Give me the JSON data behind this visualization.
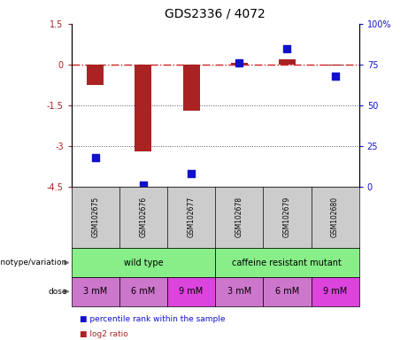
{
  "title": "GDS2336 / 4072",
  "samples": [
    "GSM102675",
    "GSM102676",
    "GSM102677",
    "GSM102678",
    "GSM102679",
    "GSM102680"
  ],
  "log2_ratio": [
    -0.75,
    -3.2,
    -1.7,
    0.08,
    0.2,
    -0.05
  ],
  "percentile_rank": [
    18,
    1,
    8,
    76,
    85,
    68
  ],
  "ylim_left": [
    -4.5,
    1.5
  ],
  "ylim_right": [
    0,
    100
  ],
  "yticks_left": [
    1.5,
    0,
    -1.5,
    -3,
    -4.5
  ],
  "yticks_right": [
    100,
    75,
    50,
    25,
    0
  ],
  "hlines": [
    -1.5,
    -3.0
  ],
  "bar_color": "#aa2222",
  "scatter_color": "#1111cc",
  "dashed_line_color": "#cc2222",
  "dose_labels": [
    "3 mM",
    "6 mM",
    "9 mM",
    "3 mM",
    "6 mM",
    "9 mM"
  ],
  "dose_colors": [
    "#cc77cc",
    "#cc77cc",
    "#dd44dd",
    "#cc77cc",
    "#cc77cc",
    "#dd44dd"
  ],
  "genotype_label": "genotype/variation",
  "dose_label": "dose",
  "wt_color": "#88ee88",
  "mutant_color": "#88ee88",
  "gsm_bg_color": "#cccccc",
  "legend_items": [
    {
      "label": "log2 ratio",
      "color": "#aa2222"
    },
    {
      "label": "percentile rank within the sample",
      "color": "#1111cc"
    }
  ],
  "background_color": "#ffffff",
  "plot_bg_color": "#ffffff",
  "tick_label_color_left": "#aa2222",
  "tick_label_color_right": "#1111cc",
  "grid_color": "#555555",
  "bar_width": 0.35,
  "scatter_size": 30
}
